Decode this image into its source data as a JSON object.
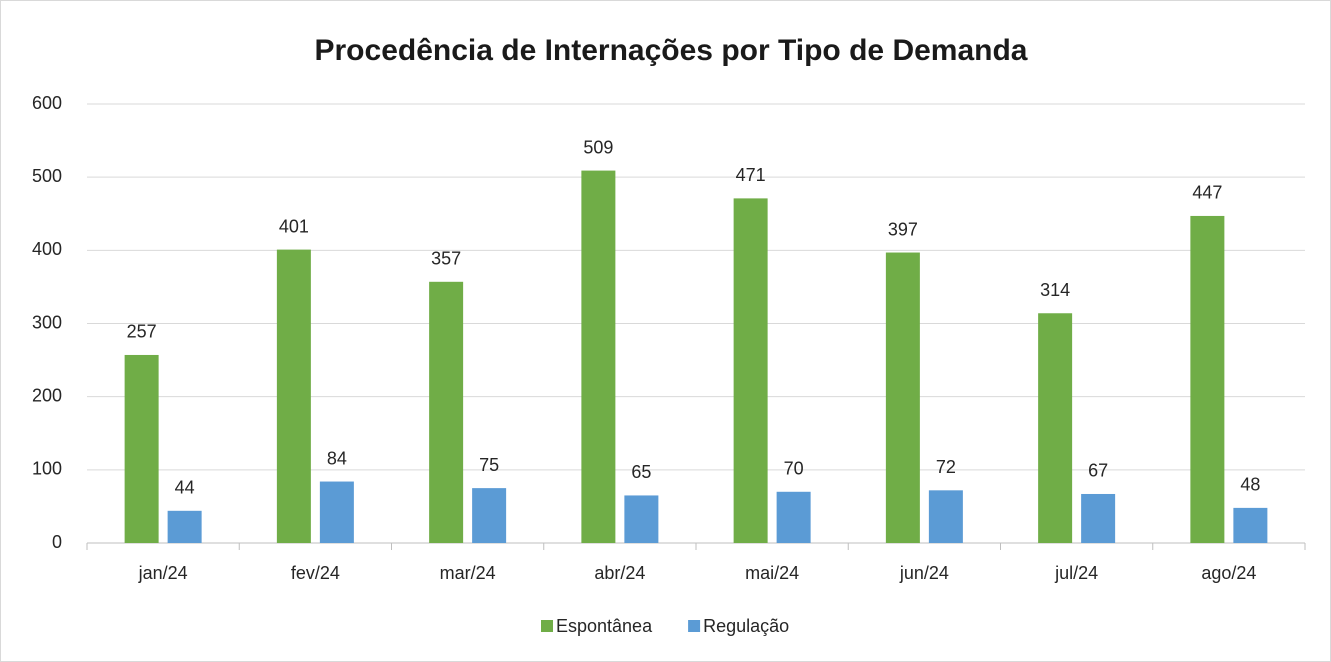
{
  "chart_data": {
    "type": "bar",
    "title": "Procedência de Internações por Tipo de Demanda",
    "categories": [
      "jan/24",
      "fev/24",
      "mar/24",
      "abr/24",
      "mai/24",
      "jun/24",
      "jul/24",
      "ago/24"
    ],
    "series": [
      {
        "name": "Espontânea",
        "color": "#70ad47",
        "values": [
          257,
          401,
          357,
          509,
          471,
          397,
          314,
          447
        ]
      },
      {
        "name": "Regulação",
        "color": "#5b9bd5",
        "values": [
          44,
          84,
          75,
          65,
          70,
          72,
          67,
          48
        ]
      }
    ],
    "ylim": [
      0,
      600
    ],
    "yticks": [
      0,
      100,
      200,
      300,
      400,
      500,
      600
    ],
    "grid": true,
    "legend": "bottom",
    "data_labels": true
  }
}
